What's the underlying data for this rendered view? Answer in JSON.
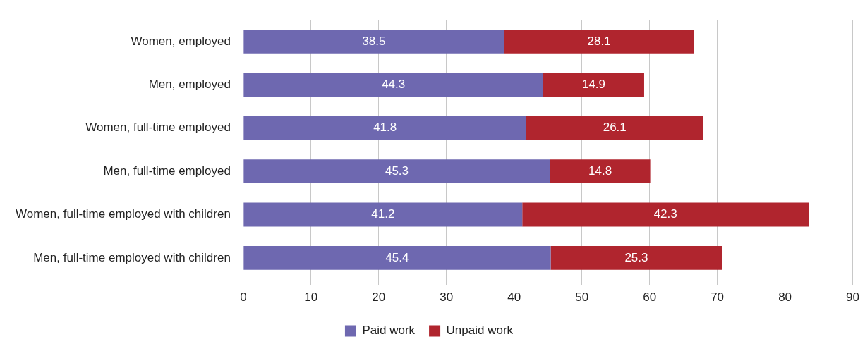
{
  "chart_data": {
    "type": "bar",
    "orientation": "horizontal",
    "stacked": true,
    "categories": [
      "Women, employed",
      "Men, employed",
      "Women, full-time employed",
      "Men, full-time employed",
      "Women, full-time employed with children",
      "Men, full-time employed with children"
    ],
    "series": [
      {
        "name": "Paid work",
        "color": "#6e68b0",
        "values": [
          38.5,
          44.3,
          41.8,
          45.3,
          41.2,
          45.4
        ]
      },
      {
        "name": "Unpaid work",
        "color": "#b0252e",
        "values": [
          28.1,
          14.9,
          26.1,
          14.8,
          42.3,
          25.3
        ]
      }
    ],
    "xlim": [
      0,
      90
    ],
    "xticks": [
      0,
      10,
      20,
      30,
      40,
      50,
      60,
      70,
      80,
      90
    ],
    "grid": "x",
    "legend": "bottom",
    "data_labels": true
  }
}
